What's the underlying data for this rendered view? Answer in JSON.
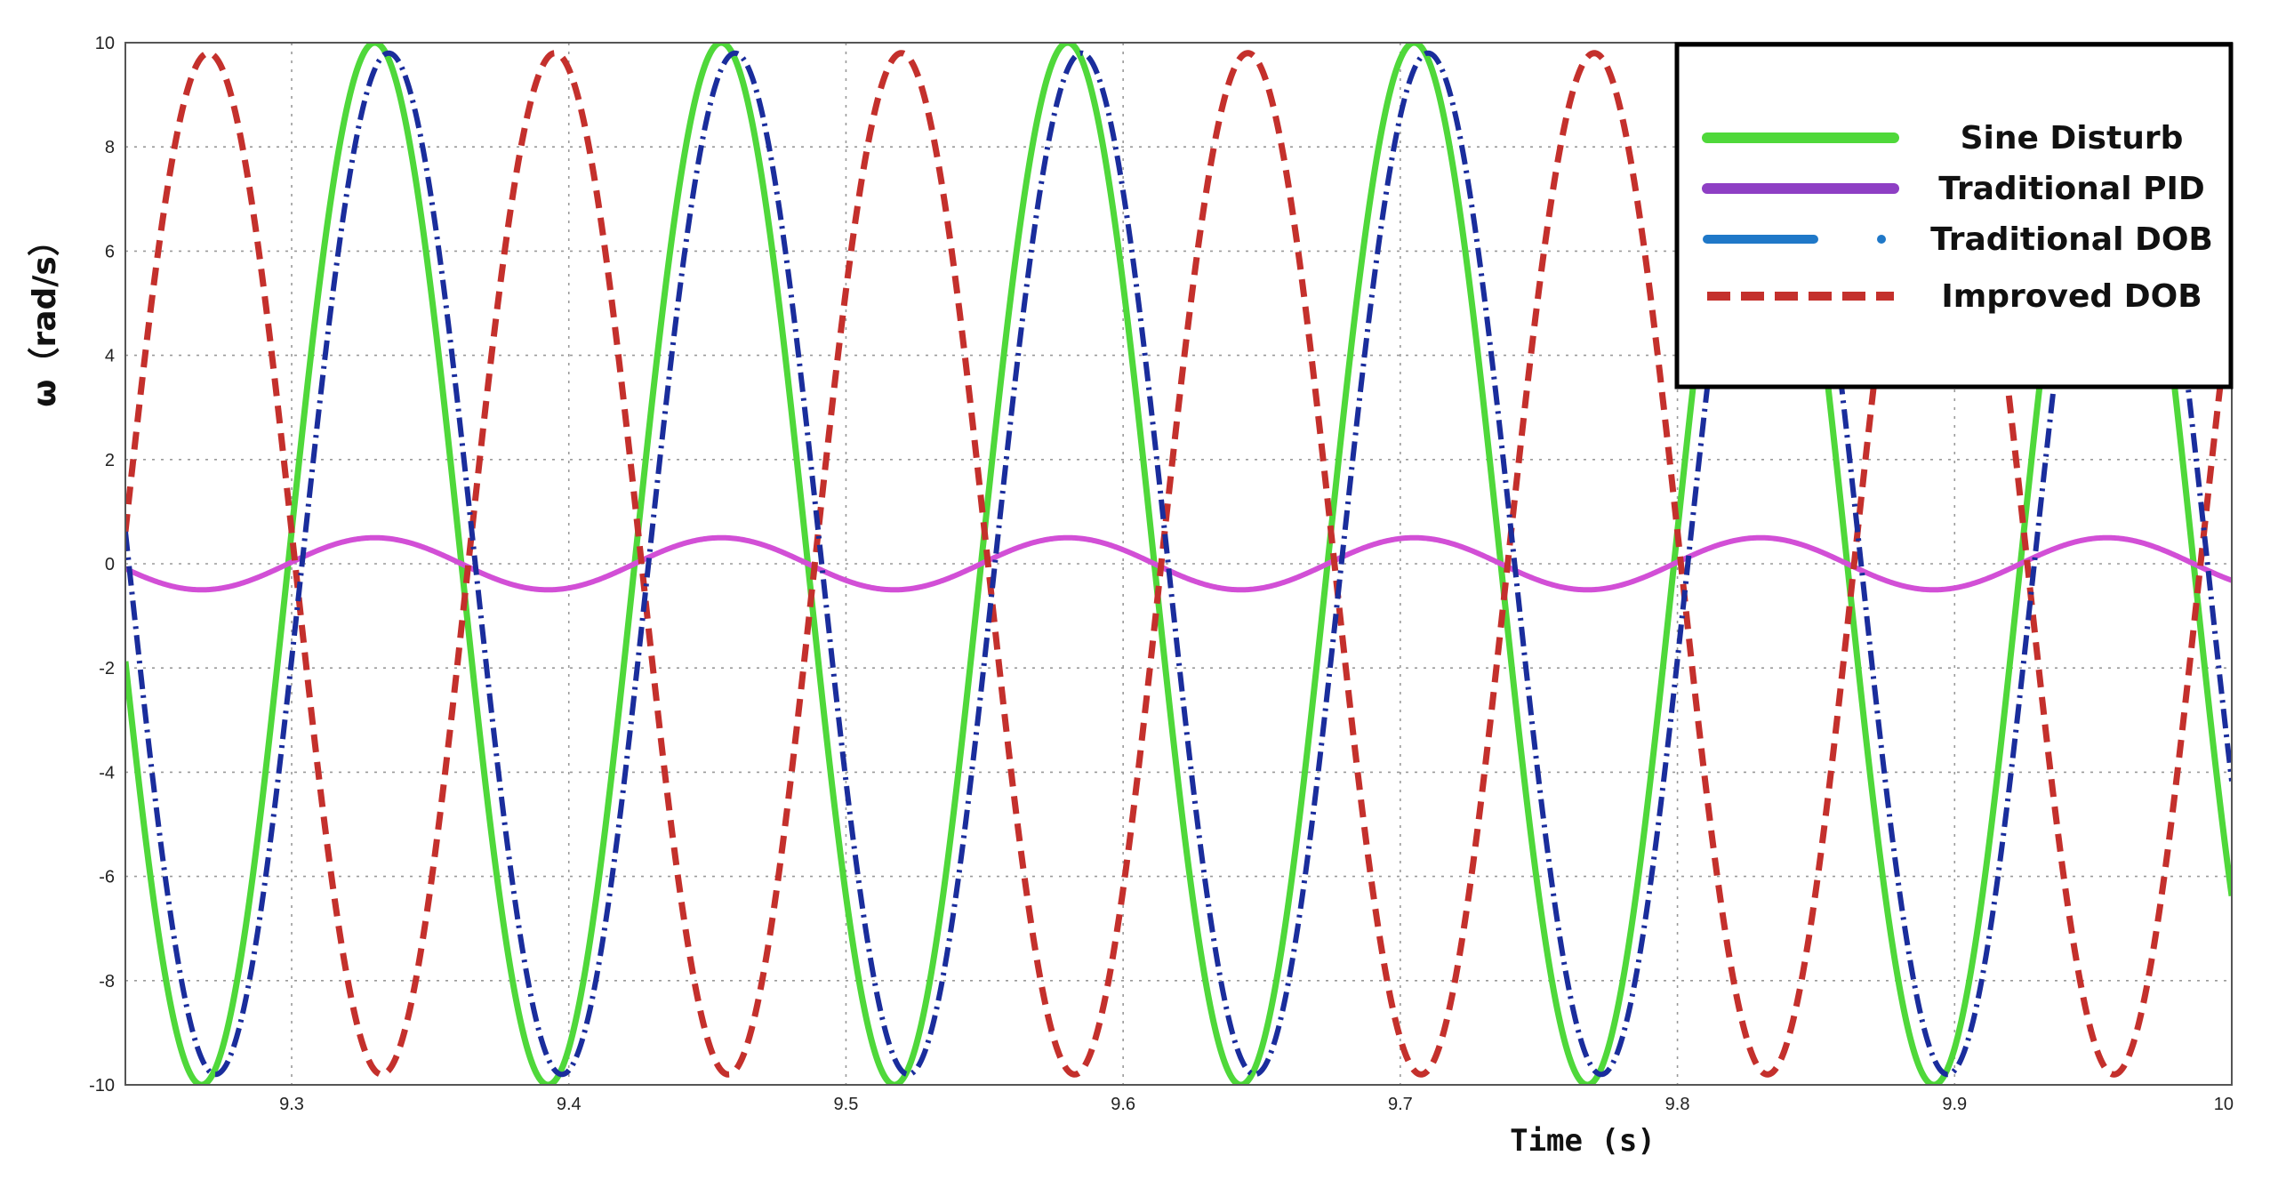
{
  "chart_data": {
    "type": "line",
    "title": "",
    "xlabel": "Time (s)",
    "ylabel": "ω（rad/s）",
    "xlim": [
      9.24,
      10.0
    ],
    "ylim": [
      -10,
      10
    ],
    "x_ticks": [
      9.3,
      9.4,
      9.5,
      9.6,
      9.7,
      9.8,
      9.9,
      10
    ],
    "x_tick_labels": [
      "9.3",
      "9.4",
      "9.5",
      "9.6",
      "9.7",
      "9.8",
      "9.9",
      "10"
    ],
    "y_ticks": [
      10,
      8,
      6,
      4,
      2,
      0,
      -2,
      -4,
      -6,
      -8,
      -10
    ],
    "y_tick_labels": [
      "10",
      "8",
      "6",
      "4",
      "2",
      "0",
      "-2",
      "-4",
      "-6",
      "-8",
      "-10"
    ],
    "grid": true,
    "legend_position": "top-right",
    "series": [
      {
        "name": "Sine Disturb",
        "color": "#4fd83a",
        "style": "solid",
        "model": "sine",
        "amplitude": 10,
        "frequency_hz": 8.0,
        "peak_time_s": 9.33
      },
      {
        "name": "Traditional PID",
        "color": "#d24fd6",
        "legend_color": "#8e3fc4",
        "style": "solid",
        "model": "sine",
        "amplitude": 0.5,
        "frequency_hz": 8.0,
        "peak_time_s": 9.33
      },
      {
        "name": "Traditional DOB",
        "color": "#1a2d9c",
        "legend_color": "#1f78c8",
        "style": "dash-dot",
        "model": "sine",
        "amplitude": 9.8,
        "frequency_hz": 8.0,
        "peak_time_s": 9.335
      },
      {
        "name": "Improved DOB",
        "color": "#c4302c",
        "style": "dashed",
        "model": "sine",
        "amplitude": 9.8,
        "frequency_hz": 8.0,
        "peak_time_s": 9.27
      }
    ]
  }
}
